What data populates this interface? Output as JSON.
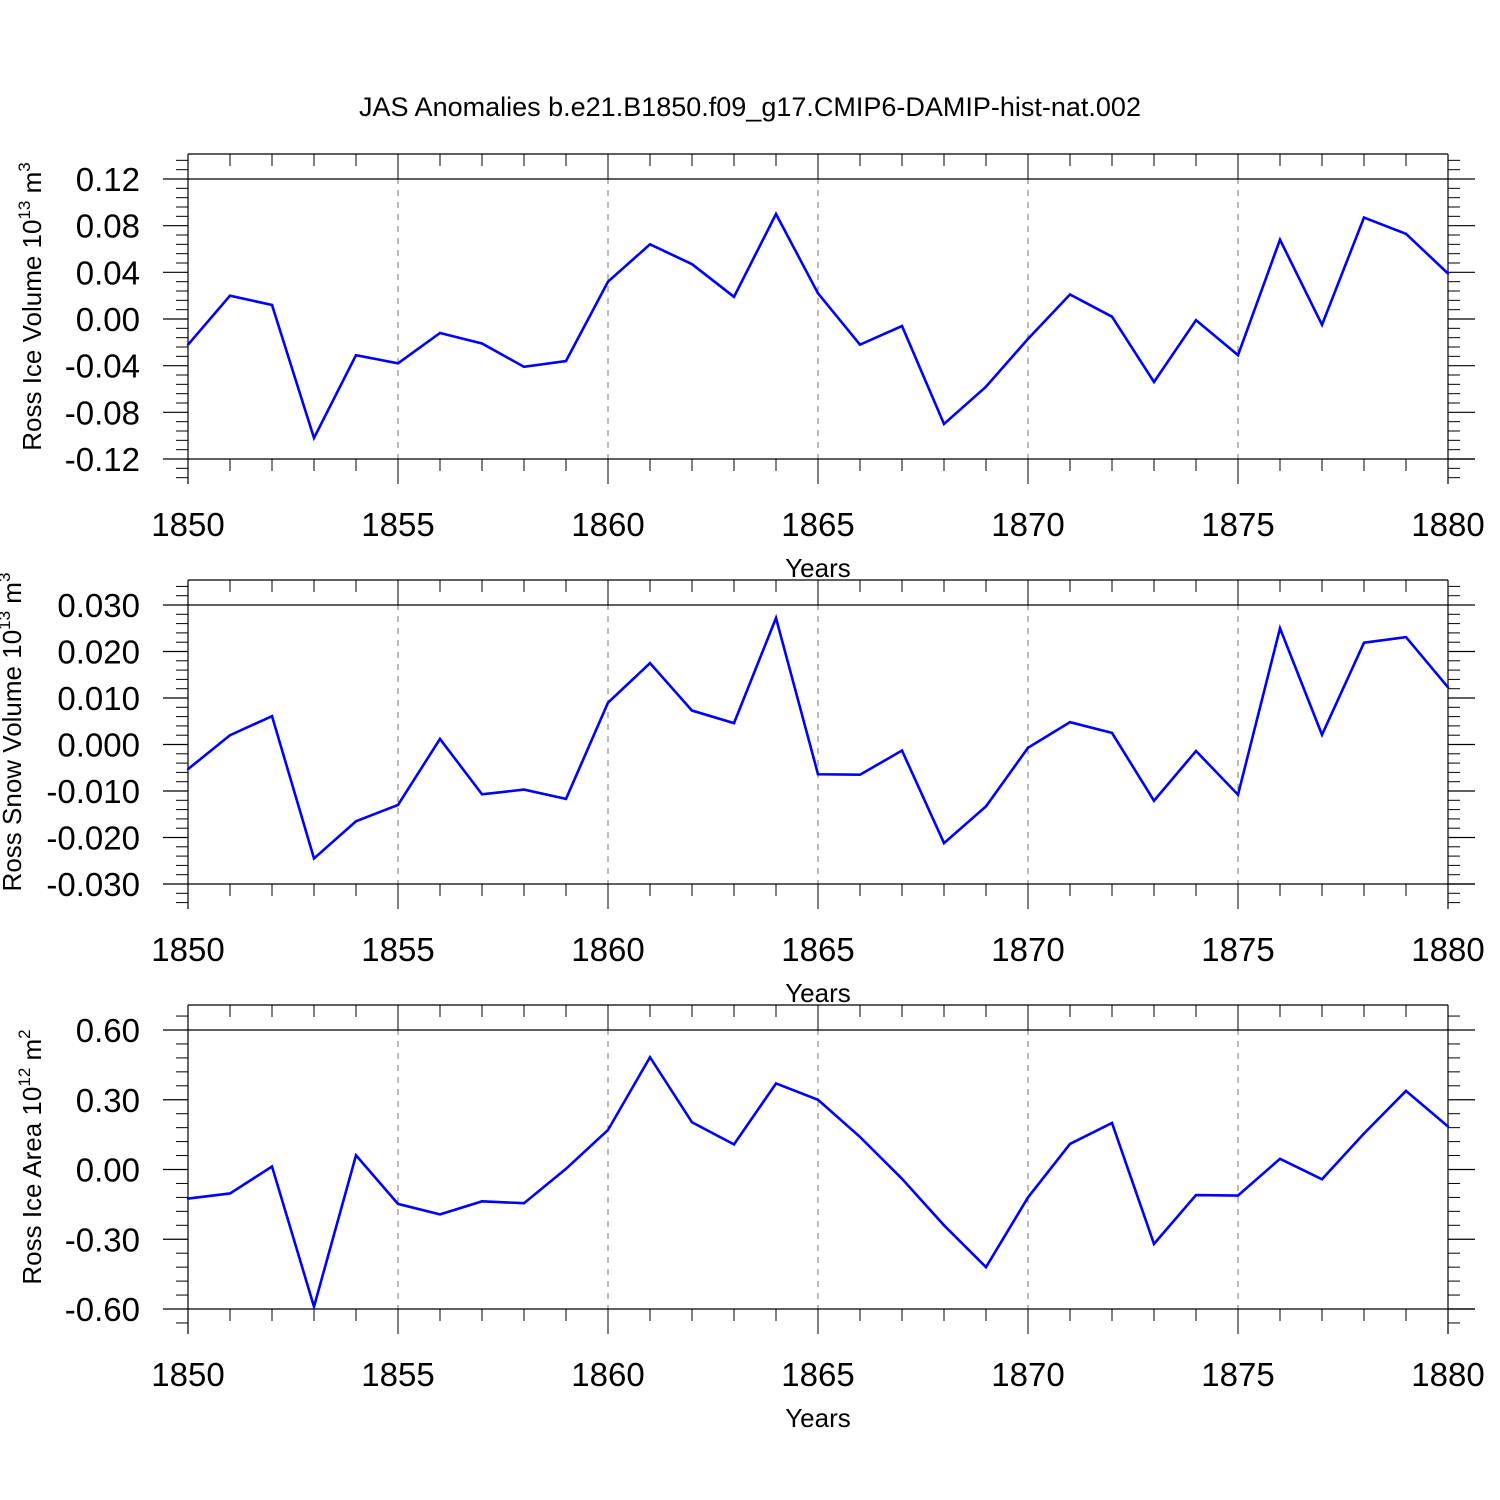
{
  "title": "JAS Anomalies b.e21.B1850.f09_g17.CMIP6-DAMIP-hist-nat.002",
  "line_color": "#0000ff",
  "chart_data": [
    {
      "type": "line",
      "ylabel": {
        "main": "Ross Ice Volume 10",
        "sup": "13",
        "unit": " m",
        "unit_sup": "3"
      },
      "xlabel": "Years",
      "xlim": [
        1850,
        1880
      ],
      "ylim": [
        -0.12,
        0.12
      ],
      "x_ticks": [
        1850,
        1855,
        1860,
        1865,
        1870,
        1875,
        1880
      ],
      "x_tick_labels": [
        "1850",
        "1855",
        "1860",
        "1865",
        "1870",
        "1875",
        "1880"
      ],
      "y_ticks": [
        -0.12,
        -0.08,
        -0.04,
        0.0,
        0.04,
        0.08,
        0.12
      ],
      "y_tick_labels": [
        "-0.12",
        "-0.08",
        "-0.04",
        "0.00",
        "0.04",
        "0.08",
        "0.12"
      ],
      "grid": "vertical dashed at major x ticks",
      "x": [
        1850,
        1851,
        1852,
        1853,
        1854,
        1855,
        1856,
        1857,
        1858,
        1859,
        1860,
        1861,
        1862,
        1863,
        1864,
        1865,
        1866,
        1867,
        1868,
        1869,
        1870,
        1871,
        1872,
        1873,
        1874,
        1875,
        1876,
        1877,
        1878,
        1879,
        1880
      ],
      "values": [
        -0.022,
        0.02,
        0.012,
        -0.102,
        -0.031,
        -0.038,
        -0.012,
        -0.021,
        -0.041,
        -0.036,
        0.032,
        0.064,
        0.047,
        0.019,
        0.09,
        0.022,
        -0.022,
        -0.006,
        -0.09,
        -0.058,
        -0.017,
        0.021,
        0.002,
        -0.054,
        -0.001,
        -0.031,
        0.068,
        -0.005,
        0.087,
        0.073,
        0.039
      ]
    },
    {
      "type": "line",
      "ylabel": {
        "main": "Ross Snow Volume 10",
        "sup": "13",
        "unit": " m",
        "unit_sup": "3"
      },
      "xlabel": "Years",
      "xlim": [
        1850,
        1880
      ],
      "ylim": [
        -0.03,
        0.03
      ],
      "x_ticks": [
        1850,
        1855,
        1860,
        1865,
        1870,
        1875,
        1880
      ],
      "x_tick_labels": [
        "1850",
        "1855",
        "1860",
        "1865",
        "1870",
        "1875",
        "1880"
      ],
      "y_ticks": [
        -0.03,
        -0.02,
        -0.01,
        0.0,
        0.01,
        0.02,
        0.03
      ],
      "y_tick_labels": [
        "-0.030",
        "-0.020",
        "-0.010",
        "0.000",
        "0.010",
        "0.020",
        "0.030"
      ],
      "grid": "vertical dashed at major x ticks",
      "x": [
        1850,
        1851,
        1852,
        1853,
        1854,
        1855,
        1856,
        1857,
        1858,
        1859,
        1860,
        1861,
        1862,
        1863,
        1864,
        1865,
        1866,
        1867,
        1868,
        1869,
        1870,
        1871,
        1872,
        1873,
        1874,
        1875,
        1876,
        1877,
        1878,
        1879,
        1880
      ],
      "values": [
        -0.0053,
        0.002,
        0.0061,
        -0.0245,
        -0.0165,
        -0.013,
        0.0012,
        -0.0107,
        -0.0097,
        -0.0117,
        0.009,
        0.0175,
        0.0073,
        0.0046,
        0.0272,
        -0.0064,
        -0.0065,
        -0.0013,
        -0.0212,
        -0.0133,
        -0.0007,
        0.0048,
        0.0025,
        -0.0121,
        -0.0014,
        -0.0108,
        0.025,
        0.0021,
        0.0219,
        0.0231,
        0.0123
      ]
    },
    {
      "type": "line",
      "ylabel": {
        "main": "Ross Ice Area 10",
        "sup": "12",
        "unit": " m",
        "unit_sup": "2"
      },
      "xlabel": "Years",
      "xlim": [
        1850,
        1880
      ],
      "ylim": [
        -0.6,
        0.6
      ],
      "x_ticks": [
        1850,
        1855,
        1860,
        1865,
        1870,
        1875,
        1880
      ],
      "x_tick_labels": [
        "1850",
        "1855",
        "1860",
        "1865",
        "1870",
        "1875",
        "1880"
      ],
      "y_ticks": [
        -0.6,
        -0.3,
        0.0,
        0.3,
        0.6
      ],
      "y_tick_labels": [
        "-0.60",
        "-0.30",
        "0.00",
        "0.30",
        "0.60"
      ],
      "grid": "vertical dashed at major x ticks",
      "x": [
        1850,
        1851,
        1852,
        1853,
        1854,
        1855,
        1856,
        1857,
        1858,
        1859,
        1860,
        1861,
        1862,
        1863,
        1864,
        1865,
        1866,
        1867,
        1868,
        1869,
        1870,
        1871,
        1872,
        1873,
        1874,
        1875,
        1876,
        1877,
        1878,
        1879,
        1880
      ],
      "values": [
        -0.125,
        -0.103,
        0.013,
        -0.59,
        0.061,
        -0.148,
        -0.193,
        -0.137,
        -0.145,
        0.003,
        0.17,
        0.483,
        0.203,
        0.108,
        0.37,
        0.3,
        0.14,
        -0.04,
        -0.24,
        -0.42,
        -0.12,
        0.11,
        0.2,
        -0.32,
        -0.11,
        -0.112,
        0.046,
        -0.042,
        0.155,
        0.338,
        0.185
      ]
    }
  ]
}
